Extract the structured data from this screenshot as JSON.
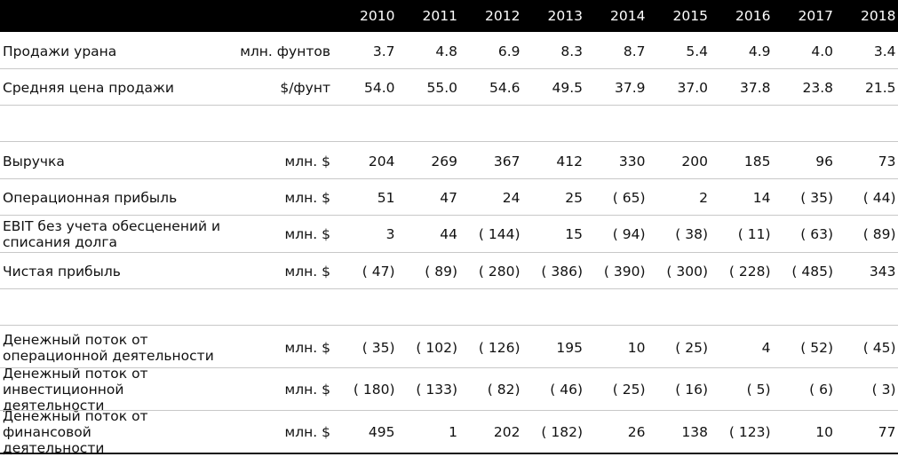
{
  "years": [
    "2010",
    "2011",
    "2012",
    "2013",
    "2014",
    "2015",
    "2016",
    "2017",
    "2018"
  ],
  "rows": [
    {
      "label": "Продажи урана",
      "unit": "млн. фунтов",
      "values": [
        "3.7",
        "4.8",
        "6.9",
        "8.3",
        "8.7",
        "5.4",
        "4.9",
        "4.0",
        "3.4"
      ]
    },
    {
      "label": "Средняя цена продажи",
      "unit": "$/фунт",
      "values": [
        "54.0",
        "55.0",
        "54.6",
        "49.5",
        "37.9",
        "37.0",
        "37.8",
        "23.8",
        "21.5"
      ]
    },
    {
      "label": "Выручка",
      "unit": "млн. $",
      "values": [
        "204",
        "269",
        "367",
        "412",
        "330",
        "200",
        "185",
        "96",
        "73"
      ]
    },
    {
      "label": "Операционная прибыль",
      "unit": "млн. $",
      "values": [
        "51",
        "47",
        "24",
        "25",
        "( 65)",
        "2",
        "14",
        "( 35)",
        "( 44)"
      ]
    },
    {
      "label": "EBIT без учета обесценений и\nсписания долга",
      "unit": "млн. $",
      "values": [
        "3",
        "44",
        "( 144)",
        "15",
        "( 94)",
        "( 38)",
        "( 11)",
        "( 63)",
        "( 89)"
      ]
    },
    {
      "label": "Чистая прибыль",
      "unit": "млн. $",
      "values": [
        "( 47)",
        "( 89)",
        "( 280)",
        "( 386)",
        "( 390)",
        "( 300)",
        "( 228)",
        "( 485)",
        "343"
      ]
    },
    {
      "label": "Денежный поток от\nоперационной деятельности",
      "unit": "млн. $",
      "values": [
        "( 35)",
        "( 102)",
        "( 126)",
        "195",
        "10",
        "( 25)",
        "4",
        "( 52)",
        "( 45)"
      ]
    },
    {
      "label": "Денежный поток от\nинвестиционной деятельности",
      "unit": "млн. $",
      "values": [
        "( 180)",
        "( 133)",
        "( 82)",
        "( 46)",
        "( 25)",
        "( 16)",
        "( 5)",
        "( 6)",
        "( 3)"
      ]
    },
    {
      "label": "Денежный поток от финансовой\nдеятельности",
      "unit": "млн. $",
      "values": [
        "495",
        "1",
        "202",
        "( 182)",
        "26",
        "138",
        "( 123)",
        "10",
        "77"
      ]
    }
  ]
}
